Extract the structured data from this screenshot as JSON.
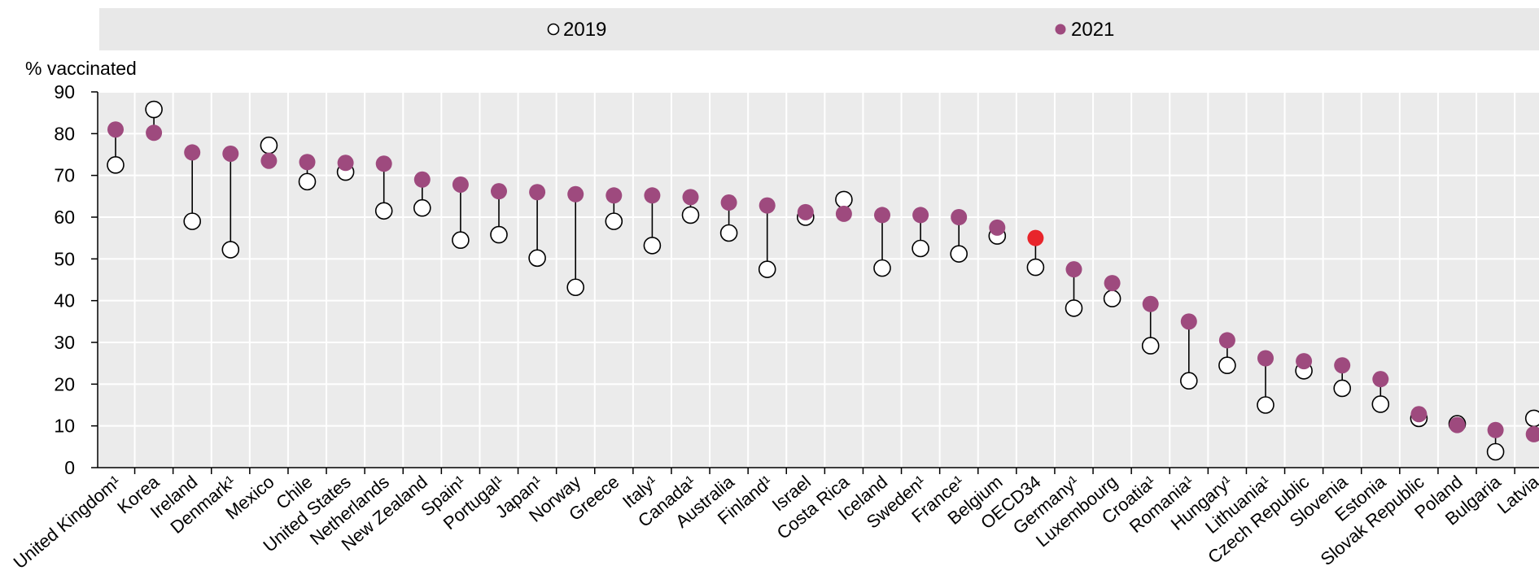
{
  "chart_data": {
    "type": "scatter",
    "ylabel": "% vaccinated",
    "ylim": [
      0,
      90
    ],
    "yticks": [
      0,
      10,
      20,
      30,
      40,
      50,
      60,
      70,
      80,
      90
    ],
    "grid": true,
    "legend_position": "top",
    "categories": [
      "United Kingdom¹",
      "Korea",
      "Ireland",
      "Denmark¹",
      "Mexico",
      "Chile",
      "United States",
      "Netherlands",
      "New Zealand",
      "Spain¹",
      "Portugal¹",
      "Japan¹",
      "Norway",
      "Greece",
      "Italy¹",
      "Canada¹",
      "Australia",
      "Finland¹",
      "Israel",
      "Costa Rica",
      "Iceland",
      "Sweden¹",
      "France¹",
      "Belgium",
      "OECD34",
      "Germany¹",
      "Luxembourg",
      "Croatia¹",
      "Romania¹",
      "Hungary¹",
      "Lithuania¹",
      "Czech Republic",
      "Slovenia",
      "Estonia",
      "Slovak Republic",
      "Poland",
      "Bulgaria",
      "Latvia"
    ],
    "highlight_category": "OECD34",
    "series": [
      {
        "name": "2019",
        "marker": "hollow-circle",
        "values": [
          72.5,
          85.8,
          59,
          52.2,
          77.2,
          68.5,
          70.8,
          61.5,
          62.2,
          54.5,
          55.8,
          50.2,
          43.2,
          59,
          53.2,
          60.5,
          56.2,
          47.5,
          60,
          64.2,
          47.8,
          52.5,
          51.2,
          55.5,
          48,
          38.2,
          40.5,
          29.2,
          20.8,
          24.5,
          15,
          23.2,
          19,
          15.2,
          11.8,
          10.5,
          3.8,
          11.8
        ]
      },
      {
        "name": "2021",
        "marker": "filled-circle",
        "values": [
          81,
          80.2,
          75.5,
          75.2,
          73.5,
          73.2,
          73,
          72.8,
          69,
          67.8,
          66.2,
          66,
          65.5,
          65.2,
          65.2,
          64.8,
          63.5,
          62.8,
          61.2,
          60.8,
          60.5,
          60.5,
          60,
          57.5,
          55,
          47.5,
          44.2,
          39.2,
          35,
          30.5,
          26.2,
          25.5,
          24.5,
          21.2,
          12.8,
          10.2,
          9,
          8
        ]
      }
    ]
  },
  "colors": {
    "series_2021": "#9e4a7e",
    "highlight": "#e8252b",
    "plot_background": "#ebebeb",
    "legend_background": "#e8e8e8",
    "gridline": "#ffffff",
    "connector": "#000000"
  }
}
